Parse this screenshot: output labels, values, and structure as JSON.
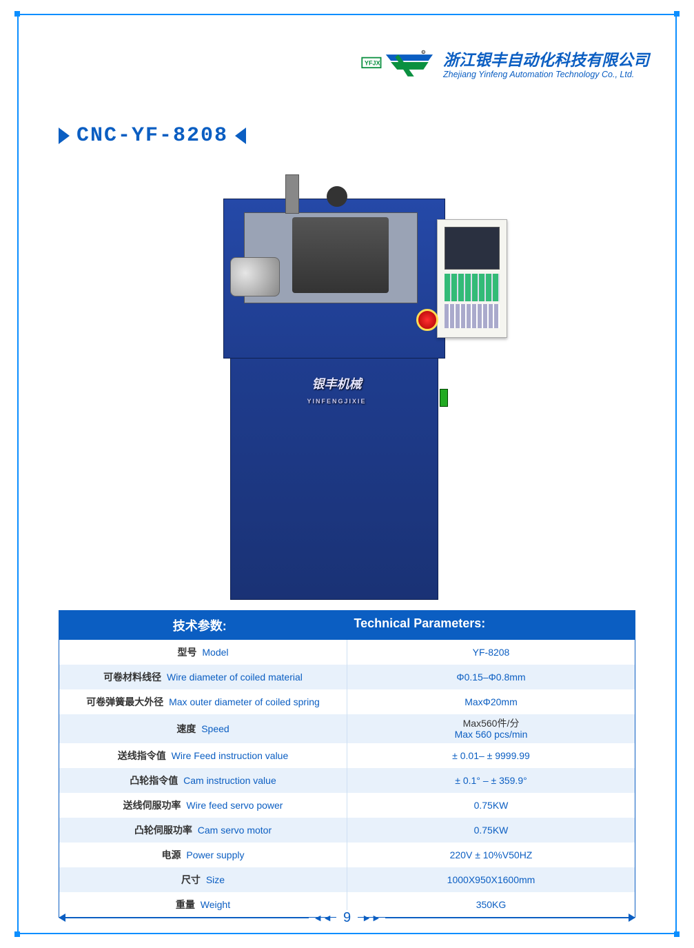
{
  "company": {
    "logo_badge": "YFJX",
    "name_cn": "浙江银丰自动化科技有限公司",
    "name_en": "Zhejiang Yinfeng Automation Technology Co., Ltd."
  },
  "product": {
    "title": "CNC-YF-8208",
    "brand_plate_cn": "银丰机械",
    "brand_plate_en": "YINFENGJIXIE"
  },
  "table": {
    "header_cn": "技术参数:",
    "header_en": "Technical Parameters:",
    "rows": [
      {
        "label_cn": "型号",
        "label_en": "Model",
        "value": "YF-8208"
      },
      {
        "label_cn": "可卷材料线径",
        "label_en": "Wire diameter of coiled material",
        "value": "Φ0.15–Φ0.8mm"
      },
      {
        "label_cn": "可卷弹簧最大外径",
        "label_en": "Max outer diameter of coiled spring",
        "value": "MaxΦ20mm"
      },
      {
        "label_cn": "速度",
        "label_en": "Speed",
        "value_cn": "Max560件/分",
        "value_en": "Max 560 pcs/min"
      },
      {
        "label_cn": "送线指令值",
        "label_en": "Wire Feed instruction value",
        "value": "± 0.01– ± 9999.99"
      },
      {
        "label_cn": "凸轮指令值",
        "label_en": "Cam instruction value",
        "value": "± 0.1°  – ± 359.9°"
      },
      {
        "label_cn": "送线伺服功率",
        "label_en": "Wire feed servo power",
        "value": "0.75KW"
      },
      {
        "label_cn": "凸轮伺服功率",
        "label_en": "Cam servo motor",
        "value": "0.75KW"
      },
      {
        "label_cn": "电源",
        "label_en": "Power supply",
        "value": "220V ± 10%V50HZ"
      },
      {
        "label_cn": "尺寸",
        "label_en": "Size",
        "value": "1000X950X1600mm"
      },
      {
        "label_cn": "重量",
        "label_en": "Weight",
        "value": "350KG"
      }
    ]
  },
  "page_number": "9",
  "colors": {
    "brand_blue": "#0b5ec2",
    "machine_blue": "#1f3d8f",
    "row_alt": "#e8f1fb"
  }
}
